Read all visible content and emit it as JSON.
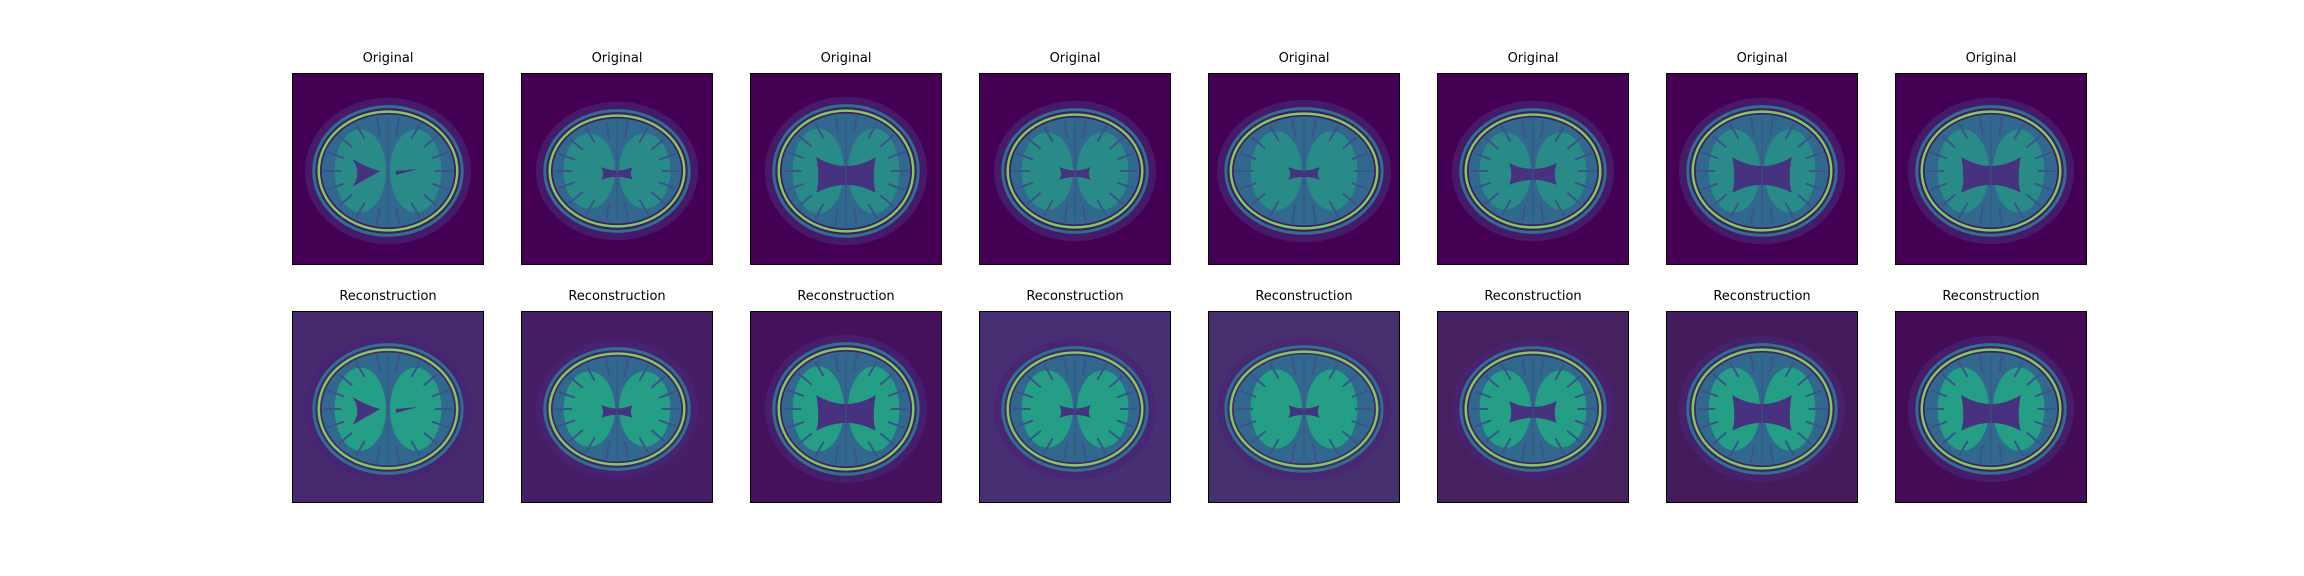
{
  "figure": {
    "rows": [
      {
        "titles": [
          "Original",
          "Original",
          "Original",
          "Original",
          "Original",
          "Original",
          "Original",
          "Original"
        ],
        "backgrounds": [
          "#440154",
          "#440154",
          "#440154",
          "#440154",
          "#440154",
          "#440154",
          "#440154",
          "#440154"
        ]
      },
      {
        "titles": [
          "Reconstruction",
          "Reconstruction",
          "Reconstruction",
          "Reconstruction",
          "Reconstruction",
          "Reconstruction",
          "Reconstruction",
          "Reconstruction"
        ],
        "backgrounds": [
          "#472a6e",
          "#461e65",
          "#45105c",
          "#482e72",
          "#47306f",
          "#46215f",
          "#441c5c",
          "#440b57"
        ]
      }
    ],
    "colormap": "viridis",
    "colors": {
      "outer_ring": "#7ad151",
      "skull_halo": "#2c728e",
      "tissue": "#31688e",
      "white_matter": "#22a884",
      "folds": "#3b528b",
      "ventricles": "#46327e"
    }
  }
}
